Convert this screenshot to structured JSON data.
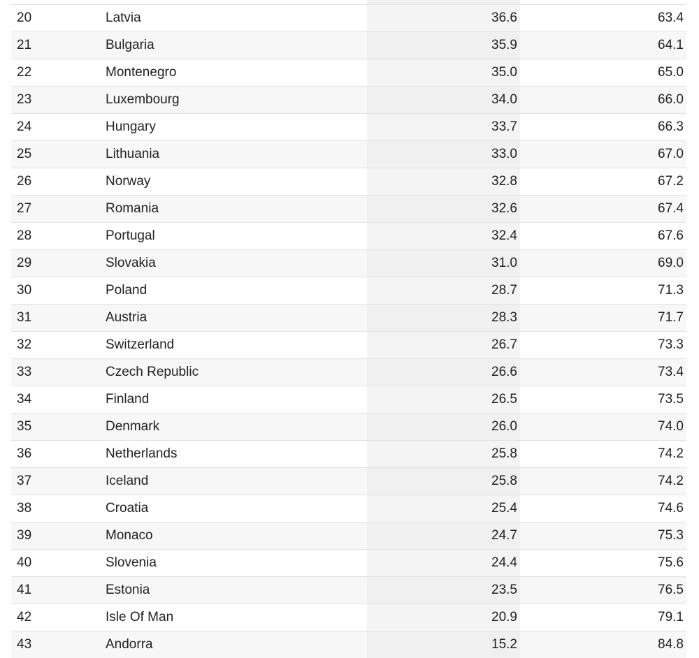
{
  "table": {
    "rows": [
      {
        "rank": "20",
        "country": "Latvia",
        "pct1": "36.6",
        "pct2": "63.4"
      },
      {
        "rank": "21",
        "country": "Bulgaria",
        "pct1": "35.9",
        "pct2": "64.1"
      },
      {
        "rank": "22",
        "country": "Montenegro",
        "pct1": "35.0",
        "pct2": "65.0"
      },
      {
        "rank": "23",
        "country": "Luxembourg",
        "pct1": "34.0",
        "pct2": "66.0"
      },
      {
        "rank": "24",
        "country": "Hungary",
        "pct1": "33.7",
        "pct2": "66.3"
      },
      {
        "rank": "25",
        "country": "Lithuania",
        "pct1": "33.0",
        "pct2": "67.0"
      },
      {
        "rank": "26",
        "country": "Norway",
        "pct1": "32.8",
        "pct2": "67.2"
      },
      {
        "rank": "27",
        "country": "Romania",
        "pct1": "32.6",
        "pct2": "67.4"
      },
      {
        "rank": "28",
        "country": "Portugal",
        "pct1": "32.4",
        "pct2": "67.6"
      },
      {
        "rank": "29",
        "country": "Slovakia",
        "pct1": "31.0",
        "pct2": "69.0"
      },
      {
        "rank": "30",
        "country": "Poland",
        "pct1": "28.7",
        "pct2": "71.3"
      },
      {
        "rank": "31",
        "country": "Austria",
        "pct1": "28.3",
        "pct2": "71.7"
      },
      {
        "rank": "32",
        "country": "Switzerland",
        "pct1": "26.7",
        "pct2": "73.3"
      },
      {
        "rank": "33",
        "country": "Czech Republic",
        "pct1": "26.6",
        "pct2": "73.4"
      },
      {
        "rank": "34",
        "country": "Finland",
        "pct1": "26.5",
        "pct2": "73.5"
      },
      {
        "rank": "35",
        "country": "Denmark",
        "pct1": "26.0",
        "pct2": "74.0"
      },
      {
        "rank": "36",
        "country": "Netherlands",
        "pct1": "25.8",
        "pct2": "74.2"
      },
      {
        "rank": "37",
        "country": "Iceland",
        "pct1": "25.8",
        "pct2": "74.2"
      },
      {
        "rank": "38",
        "country": "Croatia",
        "pct1": "25.4",
        "pct2": "74.6"
      },
      {
        "rank": "39",
        "country": "Monaco",
        "pct1": "24.7",
        "pct2": "75.3"
      },
      {
        "rank": "40",
        "country": "Slovenia",
        "pct1": "24.4",
        "pct2": "75.6"
      },
      {
        "rank": "41",
        "country": "Estonia",
        "pct1": "23.5",
        "pct2": "76.5"
      },
      {
        "rank": "42",
        "country": "Isle Of Man",
        "pct1": "20.9",
        "pct2": "79.1"
      },
      {
        "rank": "43",
        "country": "Andorra",
        "pct1": "15.2",
        "pct2": "84.8"
      }
    ]
  }
}
